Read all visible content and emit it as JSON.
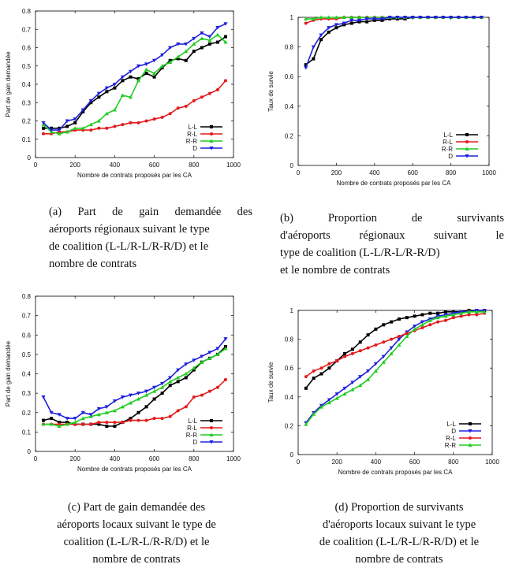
{
  "figure": {
    "panels": [
      {
        "caption_lines": [
          "(a) Part de gain demandée des",
          "aéroports régionaux suivant le type",
          "de coalition (L-L/R-L/R-R/D) et le",
          "nombre de contrats"
        ],
        "caption_align": [
          "justify",
          "left",
          "left",
          "left"
        ]
      },
      {
        "caption_lines": [
          "(b) Proportion de survivants",
          "d'aéroports régionaux suivant le",
          "type de coalition (L-L/R-L/R-R/D)",
          "et le nombre de contrats"
        ],
        "caption_align": [
          "justify",
          "justify",
          "left",
          "left"
        ]
      },
      {
        "caption_lines": [
          "(c) Part de gain demandée des",
          "aéroports locaux suivant le type de",
          "coalition (L-L/R-L/R-R/D) et le",
          "nombre de contrats"
        ],
        "caption_align": [
          "center",
          "center",
          "center",
          "center"
        ]
      },
      {
        "caption_lines": [
          "(d) Proportion de survivants",
          "d'aéroports locaux suivant le type",
          "de coalition (L-L/R-L/R-R/D) et le",
          "nombre de contrats"
        ],
        "caption_align": [
          "center",
          "center",
          "center",
          "center"
        ]
      }
    ]
  },
  "chart_data": [
    {
      "type": "line",
      "xlabel": "Nombre de contrats proposés par les CA",
      "ylabel": "Part de gain demandée",
      "xlim": [
        0,
        1000
      ],
      "ylim": [
        0,
        0.8
      ],
      "xticks": [
        "0",
        "200",
        "400",
        "600",
        "800",
        "1000"
      ],
      "yticks": [
        "0",
        "0.1",
        "0.2",
        "0.3",
        "0.4",
        "0.5",
        "0.6",
        "0.7",
        "0.8"
      ],
      "grid": false,
      "legend_position": "bottom-right",
      "x": [
        40,
        80,
        120,
        160,
        200,
        240,
        280,
        320,
        360,
        400,
        440,
        480,
        520,
        560,
        600,
        640,
        680,
        720,
        760,
        800,
        840,
        880,
        920,
        960
      ],
      "series": [
        {
          "name": "L-L",
          "color": "#000000",
          "marker": "square",
          "values": [
            0.16,
            0.16,
            0.16,
            0.17,
            0.19,
            0.25,
            0.3,
            0.33,
            0.36,
            0.38,
            0.42,
            0.44,
            0.43,
            0.46,
            0.44,
            0.49,
            0.53,
            0.54,
            0.53,
            0.58,
            0.6,
            0.62,
            0.63,
            0.66
          ]
        },
        {
          "name": "R-L",
          "color": "#e41a1c",
          "marker": "circle",
          "values": [
            0.13,
            0.13,
            0.14,
            0.14,
            0.15,
            0.15,
            0.15,
            0.16,
            0.16,
            0.17,
            0.18,
            0.19,
            0.19,
            0.2,
            0.21,
            0.22,
            0.24,
            0.27,
            0.28,
            0.31,
            0.33,
            0.35,
            0.37,
            0.42
          ]
        },
        {
          "name": "R-R",
          "color": "#22cc22",
          "marker": "triangle",
          "values": [
            0.18,
            0.14,
            0.13,
            0.14,
            0.16,
            0.16,
            0.18,
            0.2,
            0.24,
            0.26,
            0.34,
            0.33,
            0.42,
            0.48,
            0.46,
            0.5,
            0.52,
            0.55,
            0.58,
            0.62,
            0.65,
            0.64,
            0.67,
            0.63
          ]
        },
        {
          "name": "D",
          "color": "#2020dd",
          "marker": "triangle-down",
          "values": [
            0.19,
            0.15,
            0.15,
            0.2,
            0.21,
            0.26,
            0.31,
            0.35,
            0.38,
            0.4,
            0.44,
            0.47,
            0.5,
            0.51,
            0.53,
            0.56,
            0.6,
            0.62,
            0.62,
            0.65,
            0.68,
            0.66,
            0.71,
            0.73
          ]
        }
      ]
    },
    {
      "type": "line",
      "xlabel": "Nombre de contrats proposés par les CA",
      "ylabel": "Taux de survie",
      "xlim": [
        0,
        1000
      ],
      "ylim": [
        0,
        1
      ],
      "xticks": [
        "0",
        "200",
        "400",
        "600",
        "800",
        "1000"
      ],
      "yticks": [
        "0",
        "0.2",
        "0.4",
        "0.6",
        "0.8",
        "1"
      ],
      "grid": false,
      "legend_position": "bottom-right",
      "x": [
        40,
        80,
        120,
        160,
        200,
        240,
        280,
        320,
        360,
        400,
        440,
        480,
        520,
        560,
        600,
        640,
        680,
        720,
        760,
        800,
        840,
        880,
        920,
        960
      ],
      "series": [
        {
          "name": "L-L",
          "color": "#000000",
          "marker": "square",
          "values": [
            0.68,
            0.72,
            0.85,
            0.9,
            0.93,
            0.95,
            0.96,
            0.97,
            0.97,
            0.98,
            0.98,
            0.99,
            0.99,
            0.99,
            1,
            1,
            1,
            1,
            1,
            1,
            1,
            1,
            1,
            1
          ]
        },
        {
          "name": "R-L",
          "color": "#e41a1c",
          "marker": "circle",
          "values": [
            0.96,
            0.98,
            0.99,
            0.99,
            0.99,
            1,
            1,
            1,
            1,
            1,
            1,
            1,
            1,
            1,
            1,
            1,
            1,
            1,
            1,
            1,
            1,
            1,
            1,
            1
          ]
        },
        {
          "name": "R-R",
          "color": "#22cc22",
          "marker": "triangle",
          "values": [
            0.99,
            0.99,
            1,
            1,
            1,
            1,
            1,
            1,
            1,
            1,
            1,
            1,
            1,
            1,
            1,
            1,
            1,
            1,
            1,
            1,
            1,
            1,
            1,
            1
          ]
        },
        {
          "name": "D",
          "color": "#2020dd",
          "marker": "triangle-down",
          "values": [
            0.66,
            0.8,
            0.88,
            0.93,
            0.95,
            0.96,
            0.98,
            0.98,
            0.99,
            0.99,
            0.99,
            1,
            1,
            1,
            1,
            1,
            1,
            1,
            1,
            1,
            1,
            1,
            1,
            1
          ]
        }
      ]
    },
    {
      "type": "line",
      "xlabel": "Nombre de contrats proposés par les CA",
      "ylabel": "Part de gain demandée",
      "xlim": [
        0,
        1000
      ],
      "ylim": [
        0,
        0.8
      ],
      "xticks": [
        "0",
        "200",
        "400",
        "600",
        "800",
        "1000"
      ],
      "yticks": [
        "0",
        "0.1",
        "0.2",
        "0.3",
        "0.4",
        "0.5",
        "0.6",
        "0.7",
        "0.8"
      ],
      "grid": false,
      "legend_position": "bottom-right",
      "x": [
        40,
        80,
        120,
        160,
        200,
        240,
        280,
        320,
        360,
        400,
        440,
        480,
        520,
        560,
        600,
        640,
        680,
        720,
        760,
        800,
        840,
        880,
        920,
        960
      ],
      "series": [
        {
          "name": "L-L",
          "color": "#000000",
          "marker": "square",
          "values": [
            0.16,
            0.17,
            0.15,
            0.15,
            0.14,
            0.14,
            0.14,
            0.14,
            0.13,
            0.13,
            0.15,
            0.17,
            0.2,
            0.23,
            0.27,
            0.3,
            0.34,
            0.36,
            0.38,
            0.42,
            0.46,
            0.48,
            0.5,
            0.54
          ]
        },
        {
          "name": "R-L",
          "color": "#e41a1c",
          "marker": "circle",
          "values": [
            0.14,
            0.14,
            0.14,
            0.14,
            0.14,
            0.14,
            0.14,
            0.15,
            0.15,
            0.15,
            0.15,
            0.16,
            0.16,
            0.16,
            0.17,
            0.17,
            0.18,
            0.21,
            0.23,
            0.28,
            0.29,
            0.31,
            0.33,
            0.37
          ]
        },
        {
          "name": "R-R",
          "color": "#22cc22",
          "marker": "triangle",
          "values": [
            0.14,
            0.14,
            0.13,
            0.14,
            0.15,
            0.17,
            0.18,
            0.19,
            0.2,
            0.21,
            0.23,
            0.25,
            0.27,
            0.29,
            0.31,
            0.33,
            0.36,
            0.38,
            0.4,
            0.43,
            0.46,
            0.48,
            0.5,
            0.53
          ]
        },
        {
          "name": "D",
          "color": "#2020dd",
          "marker": "triangle-down",
          "values": [
            0.28,
            0.2,
            0.19,
            0.17,
            0.17,
            0.2,
            0.19,
            0.22,
            0.23,
            0.26,
            0.28,
            0.29,
            0.3,
            0.31,
            0.33,
            0.35,
            0.38,
            0.42,
            0.45,
            0.47,
            0.49,
            0.51,
            0.53,
            0.58
          ]
        }
      ]
    },
    {
      "type": "line",
      "xlabel": "Nombre de contrats proposés par les CA",
      "ylabel": "Taux de survie",
      "xlim": [
        0,
        1000
      ],
      "ylim": [
        0,
        1
      ],
      "xticks": [
        "0",
        "200",
        "400",
        "600",
        "800",
        "1000"
      ],
      "yticks": [
        "0",
        "0.2",
        "0.4",
        "0.6",
        "0.8",
        "1"
      ],
      "grid": false,
      "legend_position": "bottom-right",
      "x": [
        40,
        80,
        120,
        160,
        200,
        240,
        280,
        320,
        360,
        400,
        440,
        480,
        520,
        560,
        600,
        640,
        680,
        720,
        760,
        800,
        840,
        880,
        920,
        960
      ],
      "series": [
        {
          "name": "L-L",
          "color": "#000000",
          "marker": "square",
          "values": [
            0.46,
            0.53,
            0.56,
            0.6,
            0.65,
            0.7,
            0.73,
            0.78,
            0.83,
            0.87,
            0.9,
            0.92,
            0.94,
            0.95,
            0.96,
            0.97,
            0.98,
            0.98,
            0.99,
            0.99,
            0.99,
            1,
            1,
            1
          ]
        },
        {
          "name": "D",
          "color": "#2020dd",
          "marker": "triangle-down",
          "values": [
            0.22,
            0.29,
            0.34,
            0.38,
            0.42,
            0.46,
            0.5,
            0.54,
            0.58,
            0.63,
            0.68,
            0.74,
            0.8,
            0.85,
            0.89,
            0.92,
            0.94,
            0.96,
            0.97,
            0.98,
            0.99,
            0.99,
            1,
            1
          ]
        },
        {
          "name": "R-L",
          "color": "#e41a1c",
          "marker": "circle",
          "values": [
            0.54,
            0.58,
            0.6,
            0.63,
            0.65,
            0.68,
            0.7,
            0.72,
            0.74,
            0.76,
            0.78,
            0.8,
            0.82,
            0.84,
            0.86,
            0.88,
            0.9,
            0.92,
            0.93,
            0.95,
            0.96,
            0.97,
            0.97,
            0.98
          ]
        },
        {
          "name": "R-R",
          "color": "#22cc22",
          "marker": "triangle",
          "values": [
            0.21,
            0.28,
            0.33,
            0.36,
            0.39,
            0.42,
            0.45,
            0.48,
            0.52,
            0.58,
            0.64,
            0.7,
            0.76,
            0.82,
            0.87,
            0.9,
            0.93,
            0.95,
            0.96,
            0.97,
            0.98,
            0.99,
            0.99,
            0.99
          ]
        }
      ]
    }
  ]
}
